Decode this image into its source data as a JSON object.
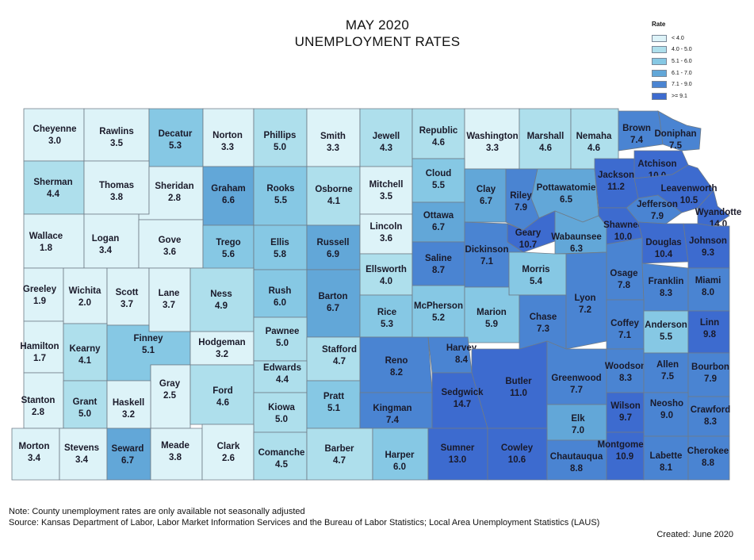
{
  "title": [
    "MAY 2020",
    "UNEMPLOYMENT RATES"
  ],
  "legend": {
    "title": "Rate",
    "items": [
      {
        "label": "< 4.0",
        "color": "#ddf3f8"
      },
      {
        "label": "4.0 - 5.0",
        "color": "#aedfec"
      },
      {
        "label": "5.1 - 6.0",
        "color": "#86c8e4"
      },
      {
        "label": "6.1 - 7.0",
        "color": "#62a7d8"
      },
      {
        "label": "7.1 - 9.0",
        "color": "#4a84d2"
      },
      {
        "label": ">= 9.1",
        "color": "#3d6bcf"
      }
    ]
  },
  "counties": [
    {
      "name": "Cheyenne",
      "rate": "3.0"
    },
    {
      "name": "Rawlins",
      "rate": "3.5"
    },
    {
      "name": "Decatur",
      "rate": "5.3"
    },
    {
      "name": "Norton",
      "rate": "3.3"
    },
    {
      "name": "Phillips",
      "rate": "5.0"
    },
    {
      "name": "Smith",
      "rate": "3.3"
    },
    {
      "name": "Jewell",
      "rate": "4.3"
    },
    {
      "name": "Republic",
      "rate": "4.6"
    },
    {
      "name": "Washington",
      "rate": "3.3"
    },
    {
      "name": "Marshall",
      "rate": "4.6"
    },
    {
      "name": "Nemaha",
      "rate": "4.6"
    },
    {
      "name": "Brown",
      "rate": "7.4"
    },
    {
      "name": "Doniphan",
      "rate": "7.5"
    },
    {
      "name": "Sherman",
      "rate": "4.4"
    },
    {
      "name": "Thomas",
      "rate": "3.8"
    },
    {
      "name": "Sheridan",
      "rate": "2.8"
    },
    {
      "name": "Graham",
      "rate": "6.6"
    },
    {
      "name": "Rooks",
      "rate": "5.5"
    },
    {
      "name": "Osborne",
      "rate": "4.1"
    },
    {
      "name": "Mitchell",
      "rate": "3.5"
    },
    {
      "name": "Cloud",
      "rate": "5.5"
    },
    {
      "name": "Clay",
      "rate": "6.7"
    },
    {
      "name": "Riley",
      "rate": "7.9"
    },
    {
      "name": "Pottawatomie",
      "rate": "6.5"
    },
    {
      "name": "Jackson",
      "rate": "11.2"
    },
    {
      "name": "Atchison",
      "rate": "10.0"
    },
    {
      "name": "Leavenworth",
      "rate": "10.5"
    },
    {
      "name": "Jefferson",
      "rate": "7.9"
    },
    {
      "name": "Wyandotte",
      "rate": "14.0"
    },
    {
      "name": "Wallace",
      "rate": "1.8"
    },
    {
      "name": "Logan",
      "rate": "3.4"
    },
    {
      "name": "Gove",
      "rate": "3.6"
    },
    {
      "name": "Trego",
      "rate": "5.6"
    },
    {
      "name": "Ellis",
      "rate": "5.8"
    },
    {
      "name": "Russell",
      "rate": "6.9"
    },
    {
      "name": "Lincoln",
      "rate": "3.6"
    },
    {
      "name": "Ottawa",
      "rate": "6.7"
    },
    {
      "name": "Geary",
      "rate": "10.7"
    },
    {
      "name": "Wabaunsee",
      "rate": "6.3"
    },
    {
      "name": "Shawnee",
      "rate": "10.0"
    },
    {
      "name": "Douglas",
      "rate": "10.4"
    },
    {
      "name": "Johnson",
      "rate": "9.3"
    },
    {
      "name": "Ellsworth",
      "rate": "4.0"
    },
    {
      "name": "Saline",
      "rate": "8.7"
    },
    {
      "name": "Dickinson",
      "rate": "7.1"
    },
    {
      "name": "Morris",
      "rate": "5.4"
    },
    {
      "name": "Osage",
      "rate": "7.8"
    },
    {
      "name": "Franklin",
      "rate": "8.3"
    },
    {
      "name": "Miami",
      "rate": "8.0"
    },
    {
      "name": "Greeley",
      "rate": "1.9"
    },
    {
      "name": "Wichita",
      "rate": "2.0"
    },
    {
      "name": "Scott",
      "rate": "3.7"
    },
    {
      "name": "Lane",
      "rate": "3.7"
    },
    {
      "name": "Ness",
      "rate": "4.9"
    },
    {
      "name": "Rush",
      "rate": "6.0"
    },
    {
      "name": "Barton",
      "rate": "6.7"
    },
    {
      "name": "Rice",
      "rate": "5.3"
    },
    {
      "name": "McPherson",
      "rate": "5.2"
    },
    {
      "name": "Marion",
      "rate": "5.9"
    },
    {
      "name": "Chase",
      "rate": "7.3"
    },
    {
      "name": "Lyon",
      "rate": "7.2"
    },
    {
      "name": "Coffey",
      "rate": "7.1"
    },
    {
      "name": "Anderson",
      "rate": "5.5"
    },
    {
      "name": "Linn",
      "rate": "9.8"
    },
    {
      "name": "Hamilton",
      "rate": "1.7"
    },
    {
      "name": "Kearny",
      "rate": "4.1"
    },
    {
      "name": "Finney",
      "rate": "5.1"
    },
    {
      "name": "Hodgeman",
      "rate": "3.2"
    },
    {
      "name": "Pawnee",
      "rate": "5.0"
    },
    {
      "name": "Stafford",
      "rate": "4.7"
    },
    {
      "name": "Edwards",
      "rate": "4.4"
    },
    {
      "name": "Reno",
      "rate": "8.2"
    },
    {
      "name": "Harvey",
      "rate": "8.4"
    },
    {
      "name": "Butler",
      "rate": "11.0"
    },
    {
      "name": "Greenwood",
      "rate": "7.7"
    },
    {
      "name": "Woodson",
      "rate": "8.3"
    },
    {
      "name": "Allen",
      "rate": "7.5"
    },
    {
      "name": "Bourbon",
      "rate": "7.9"
    },
    {
      "name": "Gray",
      "rate": "2.5"
    },
    {
      "name": "Ford",
      "rate": "4.6"
    },
    {
      "name": "Stanton",
      "rate": "2.8"
    },
    {
      "name": "Grant",
      "rate": "5.0"
    },
    {
      "name": "Haskell",
      "rate": "3.2"
    },
    {
      "name": "Kiowa",
      "rate": "5.0"
    },
    {
      "name": "Pratt",
      "rate": "5.1"
    },
    {
      "name": "Kingman",
      "rate": "7.4"
    },
    {
      "name": "Sedgwick",
      "rate": "14.7"
    },
    {
      "name": "Elk",
      "rate": "7.0"
    },
    {
      "name": "Wilson",
      "rate": "9.7"
    },
    {
      "name": "Neosho",
      "rate": "9.0"
    },
    {
      "name": "Crawford",
      "rate": "8.3"
    },
    {
      "name": "Morton",
      "rate": "3.4"
    },
    {
      "name": "Stevens",
      "rate": "3.4"
    },
    {
      "name": "Seward",
      "rate": "6.7"
    },
    {
      "name": "Meade",
      "rate": "3.8"
    },
    {
      "name": "Clark",
      "rate": "2.6"
    },
    {
      "name": "Comanche",
      "rate": "4.5"
    },
    {
      "name": "Barber",
      "rate": "4.7"
    },
    {
      "name": "Harper",
      "rate": "6.0"
    },
    {
      "name": "Sumner",
      "rate": "13.0"
    },
    {
      "name": "Cowley",
      "rate": "10.6"
    },
    {
      "name": "Chautauqua",
      "rate": "8.8"
    },
    {
      "name": "Montgomery",
      "rate": "10.9"
    },
    {
      "name": "Labette",
      "rate": "8.1"
    },
    {
      "name": "Cherokee",
      "rate": "8.8"
    }
  ],
  "notes": {
    "note": "Note: County unemployment rates are only available not seasonally adjusted",
    "source": "Source: Kansas Department of Labor, Labor Market Information Services and the Bureau of Labor Statistics; Local Area Unemployment Statistics (LAUS)",
    "created": "Created:  June 2020"
  }
}
